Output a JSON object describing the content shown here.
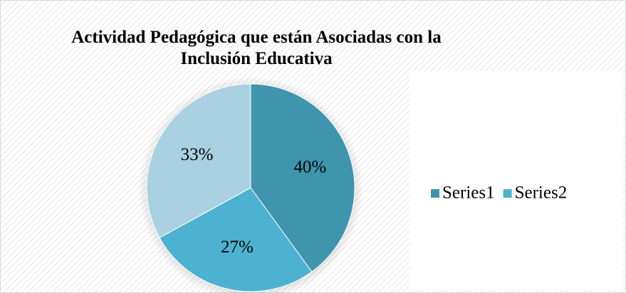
{
  "chart_data": {
    "type": "pie",
    "title": "Actividad Pedagógica que están Asociadas con la Inclusión Educativa",
    "categories": [
      "Series1",
      "Series2",
      null
    ],
    "values": [
      40,
      27,
      33
    ],
    "value_labels": [
      "40%",
      "27%",
      "33%"
    ],
    "colors": [
      "#3f95ae",
      "#4db2cf",
      "#a9d1e1"
    ],
    "legend": "right"
  }
}
